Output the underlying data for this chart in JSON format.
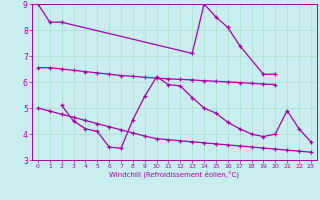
{
  "background_color": "#c8eef0",
  "grid_color": "#aaddcc",
  "line_color": "#aa00aa",
  "xlim": [
    -0.5,
    23.5
  ],
  "ylim": [
    3,
    9
  ],
  "yticks": [
    3,
    4,
    5,
    6,
    7,
    8,
    9
  ],
  "xticks": [
    0,
    1,
    2,
    3,
    4,
    5,
    6,
    7,
    8,
    9,
    10,
    11,
    12,
    13,
    14,
    15,
    16,
    17,
    18,
    19,
    20,
    21,
    22,
    23
  ],
  "xlabel": "Windchill (Refroidissement éolien,°C)",
  "series1_x": [
    0,
    1,
    2,
    13,
    14,
    15,
    16,
    17,
    19,
    20
  ],
  "series1_y": [
    9.0,
    8.3,
    8.3,
    7.1,
    9.0,
    8.5,
    8.1,
    7.4,
    6.3,
    6.3
  ],
  "series2_x": [
    0,
    1,
    2,
    3,
    4,
    5,
    6,
    7,
    8,
    9,
    10,
    11,
    12,
    13,
    14,
    15,
    16,
    17,
    18,
    19,
    20
  ],
  "series2_y": [
    6.55,
    6.55,
    6.5,
    6.45,
    6.4,
    6.35,
    6.3,
    6.25,
    6.22,
    6.18,
    6.15,
    6.12,
    6.1,
    6.08,
    6.05,
    6.03,
    6.0,
    5.98,
    5.95,
    5.92,
    5.9
  ],
  "series3_x": [
    2,
    3,
    4,
    5,
    6,
    7,
    8,
    9,
    10,
    11,
    12,
    13,
    14,
    15,
    16,
    17,
    18,
    19,
    20,
    21,
    22,
    23
  ],
  "series3_y": [
    5.1,
    4.5,
    4.2,
    4.1,
    3.5,
    3.45,
    4.55,
    5.45,
    6.2,
    5.9,
    5.85,
    5.4,
    5.0,
    4.8,
    4.45,
    4.2,
    4.0,
    3.9,
    4.0,
    4.9,
    4.2,
    3.7
  ],
  "series4_x": [
    0,
    1,
    2,
    3,
    4,
    5,
    6,
    7,
    8,
    9,
    10,
    11,
    12,
    13,
    14,
    15,
    16,
    17,
    18,
    19,
    20,
    21,
    22,
    23
  ],
  "series4_y": [
    5.0,
    4.88,
    4.76,
    4.64,
    4.52,
    4.4,
    4.28,
    4.16,
    4.04,
    3.92,
    3.82,
    3.78,
    3.74,
    3.7,
    3.66,
    3.62,
    3.58,
    3.54,
    3.5,
    3.46,
    3.42,
    3.38,
    3.34,
    3.3
  ]
}
